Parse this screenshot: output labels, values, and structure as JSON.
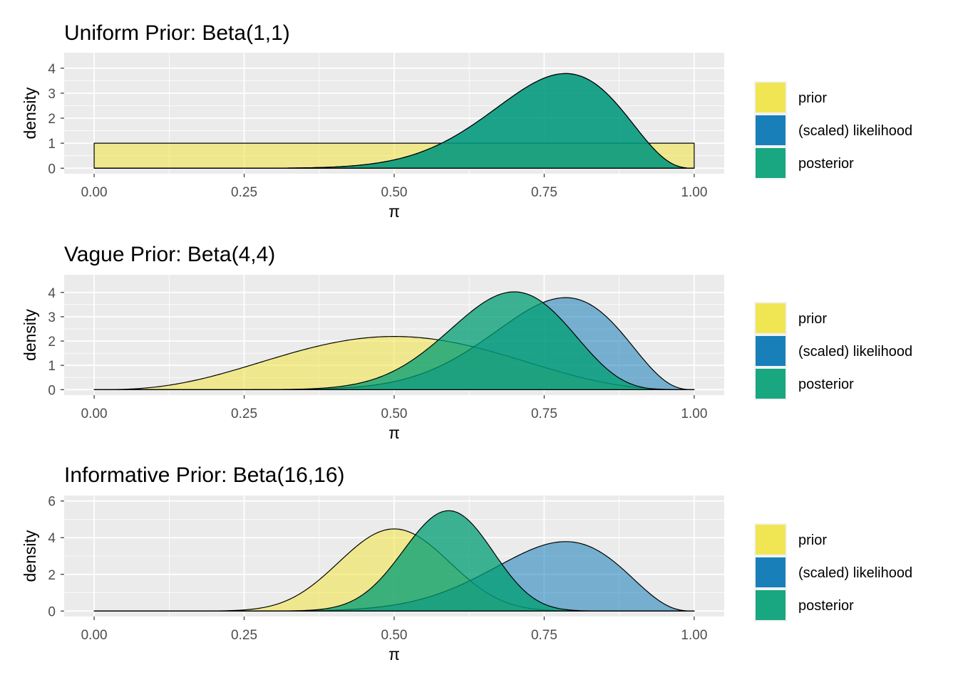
{
  "chart_data": [
    {
      "type": "area",
      "title": "Uniform Prior: Beta(1,1)",
      "xlabel": "π",
      "ylabel": "density",
      "xlim": [
        0,
        1
      ],
      "ylim": [
        0,
        4.4
      ],
      "x_ticks": [
        "0.00",
        "0.25",
        "0.50",
        "0.75",
        "1.00"
      ],
      "y_ticks": [
        "0",
        "1",
        "2",
        "3",
        "4"
      ],
      "grid": true,
      "legend_position": "right",
      "series": [
        {
          "name": "prior",
          "dist": "beta",
          "alpha": 1,
          "beta": 1
        },
        {
          "name": "(scaled) likelihood",
          "dist": "beta",
          "alpha": 12,
          "beta": 4
        },
        {
          "name": "posterior",
          "dist": "beta",
          "alpha": 12,
          "beta": 4
        }
      ]
    },
    {
      "type": "area",
      "title": "Vague Prior: Beta(4,4)",
      "xlabel": "π",
      "ylabel": "density",
      "xlim": [
        0,
        1
      ],
      "ylim": [
        0,
        4.5
      ],
      "x_ticks": [
        "0.00",
        "0.25",
        "0.50",
        "0.75",
        "1.00"
      ],
      "y_ticks": [
        "0",
        "1",
        "2",
        "3",
        "4"
      ],
      "grid": true,
      "legend_position": "right",
      "series": [
        {
          "name": "prior",
          "dist": "beta",
          "alpha": 4,
          "beta": 4
        },
        {
          "name": "(scaled) likelihood",
          "dist": "beta",
          "alpha": 12,
          "beta": 4
        },
        {
          "name": "posterior",
          "dist": "beta",
          "alpha": 15,
          "beta": 7
        }
      ]
    },
    {
      "type": "area",
      "title": "Informative Prior: Beta(16,16)",
      "xlabel": "π",
      "ylabel": "density",
      "xlim": [
        0,
        1
      ],
      "ylim": [
        0,
        6
      ],
      "x_ticks": [
        "0.00",
        "0.25",
        "0.50",
        "0.75",
        "1.00"
      ],
      "y_ticks": [
        "0",
        "2",
        "4",
        "6"
      ],
      "grid": true,
      "legend_position": "right",
      "series": [
        {
          "name": "prior",
          "dist": "beta",
          "alpha": 16,
          "beta": 16
        },
        {
          "name": "(scaled) likelihood",
          "dist": "beta",
          "alpha": 12,
          "beta": 4
        },
        {
          "name": "posterior",
          "dist": "beta",
          "alpha": 27,
          "beta": 19
        }
      ]
    }
  ],
  "legend": {
    "items": [
      {
        "label": "prior",
        "color": "#F0E442"
      },
      {
        "label": "(scaled) likelihood",
        "color": "#0072B2"
      },
      {
        "label": "posterior",
        "color": "#009E73"
      }
    ]
  },
  "colors": {
    "panel_background": "#EBEBEB",
    "gridline": "#FFFFFF",
    "prior": "#F0E442",
    "likelihood": "#0072B2",
    "posterior": "#009E73"
  }
}
